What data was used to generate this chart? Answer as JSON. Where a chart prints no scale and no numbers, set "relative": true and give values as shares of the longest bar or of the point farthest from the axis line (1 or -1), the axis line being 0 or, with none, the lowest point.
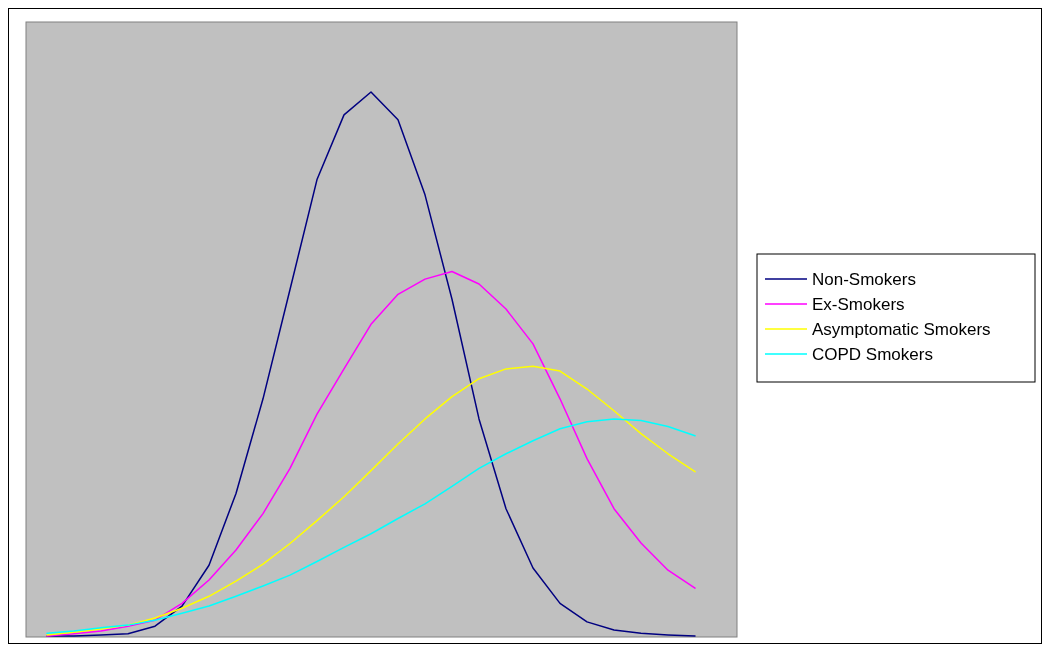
{
  "chart_data": {
    "type": "line",
    "relative": true,
    "categories": [
      null,
      null,
      null,
      null,
      null,
      null,
      null,
      null,
      null,
      null,
      null,
      null,
      null,
      null,
      null,
      null,
      null,
      null,
      null,
      null,
      null,
      null,
      null,
      null,
      null
    ],
    "legend": "right",
    "series": [
      {
        "name": "Non-Smokers",
        "color": "#000080",
        "values": [
          0,
          0,
          0.002,
          0.004,
          0.018,
          0.055,
          0.13,
          0.262,
          0.436,
          0.637,
          0.839,
          0.958,
          1,
          0.949,
          0.811,
          0.619,
          0.399,
          0.234,
          0.125,
          0.06,
          0.026,
          0.011,
          0.005,
          0.002,
          0
        ]
      },
      {
        "name": "Ex-Smokers",
        "color": "#ff00ff",
        "values": [
          0,
          0.004,
          0.009,
          0.018,
          0.029,
          0.06,
          0.103,
          0.158,
          0.225,
          0.308,
          0.408,
          0.491,
          0.573,
          0.628,
          0.656,
          0.67,
          0.647,
          0.601,
          0.537,
          0.436,
          0.326,
          0.234,
          0.171,
          0.121,
          0.088
        ]
      },
      {
        "name": "Asymptomatic Smokers",
        "color": "#ffff00",
        "values": [
          0.002,
          0.007,
          0.013,
          0.02,
          0.033,
          0.051,
          0.073,
          0.101,
          0.132,
          0.17,
          0.212,
          0.256,
          0.304,
          0.353,
          0.399,
          0.44,
          0.473,
          0.491,
          0.496,
          0.487,
          0.454,
          0.414,
          0.372,
          0.335,
          0.302
        ]
      },
      {
        "name": "COPD Smokers",
        "color": "#00ffff",
        "values": [
          0.005,
          0.009,
          0.015,
          0.02,
          0.029,
          0.042,
          0.055,
          0.073,
          0.092,
          0.112,
          0.137,
          0.163,
          0.188,
          0.216,
          0.243,
          0.275,
          0.308,
          0.335,
          0.359,
          0.381,
          0.394,
          0.399,
          0.396,
          0.385,
          0.368
        ]
      }
    ]
  }
}
